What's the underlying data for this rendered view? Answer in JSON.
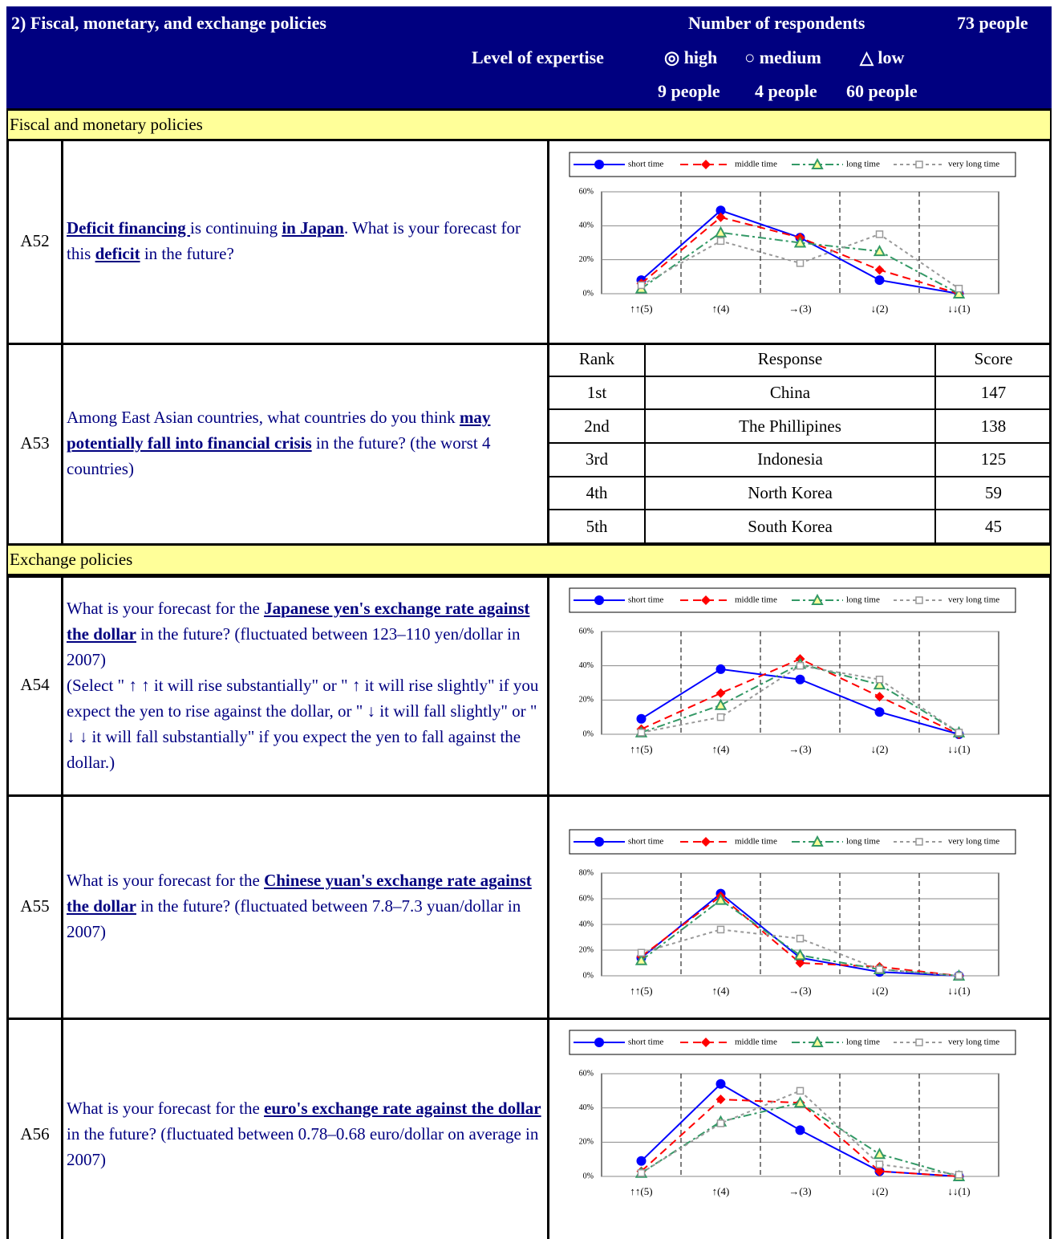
{
  "header": {
    "title": "2) Fiscal, monetary, and exchange policies",
    "respondents_label": "Number of respondents",
    "respondents": "73 people",
    "expertise_label": "Level of expertise",
    "levels": [
      {
        "label": "◎ high",
        "count": "9 people"
      },
      {
        "label": "○ medium",
        "count": "4 people"
      },
      {
        "label": "△ low",
        "count": "60 people"
      }
    ]
  },
  "sections": [
    "Fiscal and monetary policies",
    "Exchange policies"
  ],
  "questions": [
    {
      "id": "A52",
      "paragraphs": [
        [
          {
            "text": "Deficit financing ",
            "bold": true
          },
          {
            "text": "is continuing ",
            "bold": false
          },
          {
            "text": "in Japan",
            "bold": true
          },
          {
            "text": ". What is your forecast for this ",
            "bold": false
          },
          {
            "text": "deficit",
            "bold": true
          },
          {
            "text": " in the future?",
            "bold": false
          }
        ]
      ]
    },
    {
      "id": "A53",
      "paragraphs": [
        [
          {
            "text": "Among East Asian countries, what countries do you think ",
            "bold": false
          },
          {
            "text": "may potentially fall into financial crisis",
            "bold": true
          },
          {
            "text": " in the future? (the worst 4 countries)",
            "bold": false
          }
        ]
      ]
    },
    {
      "id": "A54",
      "paragraphs": [
        [
          {
            "text": "What is your forecast for the ",
            "bold": false
          },
          {
            "text": "Japanese yen's exchange rate against the dollar",
            "bold": true
          },
          {
            "text": " in the future? (fluctuated between 123–110 yen/dollar in 2007)",
            "bold": false
          }
        ],
        [
          {
            "text": "(Select \" ↑ ↑ it will rise substantially\" or \" ↑ it will rise slightly\" if you expect the yen to rise against the dollar, or \" ↓  it will fall slightly\" or \" ↓ ↓ it will fall substantially\" if you expect the yen to fall against the dollar.)",
            "bold": false
          }
        ]
      ]
    },
    {
      "id": "A55",
      "paragraphs": [
        [
          {
            "text": "What is your forecast for the ",
            "bold": false
          },
          {
            "text": "Chinese yuan's exchange rate against the dollar",
            "bold": true
          },
          {
            "text": " in the future? (fluctuated between 7.8–7.3 yuan/dollar in 2007)",
            "bold": false
          }
        ]
      ]
    },
    {
      "id": "A56",
      "paragraphs": [
        [
          {
            "text": "What is your forecast for the ",
            "bold": false
          },
          {
            "text": "euro's exchange rate against the dollar",
            "bold": true
          },
          {
            "text": " in the future? (fluctuated between 0.78–0.68 euro/dollar on average in 2007)",
            "bold": false
          }
        ]
      ]
    }
  ],
  "table": {
    "columns": [
      "Rank",
      "Response",
      "Score"
    ],
    "rows": [
      [
        "1st",
        "China",
        147
      ],
      [
        "2nd",
        "The Phillipines",
        138
      ],
      [
        "3rd",
        "Indonesia",
        125
      ],
      [
        "4th",
        "North Korea",
        59
      ],
      [
        "5th",
        "South Korea",
        45
      ]
    ]
  },
  "chart_data": [
    {
      "type": "line",
      "categories": [
        "↑↑(5)",
        "↑(4)",
        "→(3)",
        "↓(2)",
        "↓↓(1)"
      ],
      "ylim": [
        0,
        60
      ],
      "yticks": [
        {
          "value": 0,
          "label": "0%"
        },
        {
          "value": 20,
          "label": "20%"
        },
        {
          "value": 40,
          "label": "40%"
        },
        {
          "value": 60,
          "label": "60%"
        }
      ],
      "grid": true,
      "series": [
        {
          "name": "short time",
          "color": "#0000ff",
          "dash": "solid",
          "marker": "circle",
          "values": [
            8,
            49,
            33,
            8,
            0
          ]
        },
        {
          "name": "middle time",
          "color": "#ff0000",
          "dash": "dashed",
          "marker": "diamond",
          "values": [
            6,
            45,
            33,
            14,
            0
          ]
        },
        {
          "name": "long time",
          "color": "#339966",
          "dash": "dashdot",
          "marker": "triangle",
          "values": [
            3,
            36,
            30,
            25,
            0
          ]
        },
        {
          "name": "very long time",
          "color": "#999999",
          "dash": "dotted",
          "marker": "square",
          "values": [
            5,
            31,
            18,
            35,
            3
          ]
        }
      ]
    },
    {
      "type": "line",
      "categories": [
        "↑↑(5)",
        "↑(4)",
        "→(3)",
        "↓(2)",
        "↓↓(1)"
      ],
      "ylim": [
        0,
        60
      ],
      "yticks": [
        {
          "value": 0,
          "label": "0%"
        },
        {
          "value": 20,
          "label": "20%"
        },
        {
          "value": 40,
          "label": "40%"
        },
        {
          "value": 60,
          "label": "60%"
        }
      ],
      "grid": true,
      "series": [
        {
          "name": "short time",
          "color": "#0000ff",
          "dash": "solid",
          "marker": "circle",
          "values": [
            9,
            38,
            32,
            13,
            0
          ]
        },
        {
          "name": "middle time",
          "color": "#ff0000",
          "dash": "dashed",
          "marker": "diamond",
          "values": [
            3,
            24,
            44,
            22,
            0
          ]
        },
        {
          "name": "long time",
          "color": "#339966",
          "dash": "dashdot",
          "marker": "triangle",
          "values": [
            1,
            17,
            41,
            29,
            1
          ]
        },
        {
          "name": "very long time",
          "color": "#999999",
          "dash": "dotted",
          "marker": "square",
          "values": [
            1,
            10,
            40,
            32,
            1
          ]
        }
      ]
    },
    {
      "type": "line",
      "categories": [
        "↑↑(5)",
        "↑(4)",
        "→(3)",
        "↓(2)",
        "↓↓(1)"
      ],
      "ylim": [
        0,
        80
      ],
      "yticks": [
        {
          "value": 0,
          "label": "0%"
        },
        {
          "value": 20,
          "label": "20%"
        },
        {
          "value": 40,
          "label": "40%"
        },
        {
          "value": 60,
          "label": "60%"
        },
        {
          "value": 80,
          "label": "80%"
        }
      ],
      "grid": true,
      "series": [
        {
          "name": "short time",
          "color": "#0000ff",
          "dash": "solid",
          "marker": "circle",
          "values": [
            14,
            64,
            14,
            3,
            0
          ]
        },
        {
          "name": "middle time",
          "color": "#ff0000",
          "dash": "dashed",
          "marker": "diamond",
          "values": [
            15,
            62,
            10,
            7,
            0
          ]
        },
        {
          "name": "long time",
          "color": "#339966",
          "dash": "dashdot",
          "marker": "triangle",
          "values": [
            12,
            59,
            16,
            5,
            0
          ]
        },
        {
          "name": "very long time",
          "color": "#999999",
          "dash": "dotted",
          "marker": "square",
          "values": [
            18,
            36,
            29,
            5,
            0
          ]
        }
      ]
    },
    {
      "type": "line",
      "categories": [
        "↑↑(5)",
        "↑(4)",
        "→(3)",
        "↓(2)",
        "↓↓(1)"
      ],
      "ylim": [
        0,
        60
      ],
      "yticks": [
        {
          "value": 0,
          "label": "0%"
        },
        {
          "value": 20,
          "label": "20%"
        },
        {
          "value": 40,
          "label": "40%"
        },
        {
          "value": 60,
          "label": "60%"
        }
      ],
      "grid": true,
      "series": [
        {
          "name": "short time",
          "color": "#0000ff",
          "dash": "solid",
          "marker": "circle",
          "values": [
            9,
            54,
            27,
            3,
            0
          ]
        },
        {
          "name": "middle time",
          "color": "#ff0000",
          "dash": "dashed",
          "marker": "diamond",
          "values": [
            3,
            45,
            43,
            3,
            0
          ]
        },
        {
          "name": "long time",
          "color": "#339966",
          "dash": "dashdot",
          "marker": "triangle",
          "values": [
            2,
            32,
            43,
            13,
            0
          ]
        },
        {
          "name": "very long time",
          "color": "#999999",
          "dash": "dotted",
          "marker": "square",
          "values": [
            2,
            31,
            50,
            7,
            1
          ]
        }
      ]
    }
  ]
}
